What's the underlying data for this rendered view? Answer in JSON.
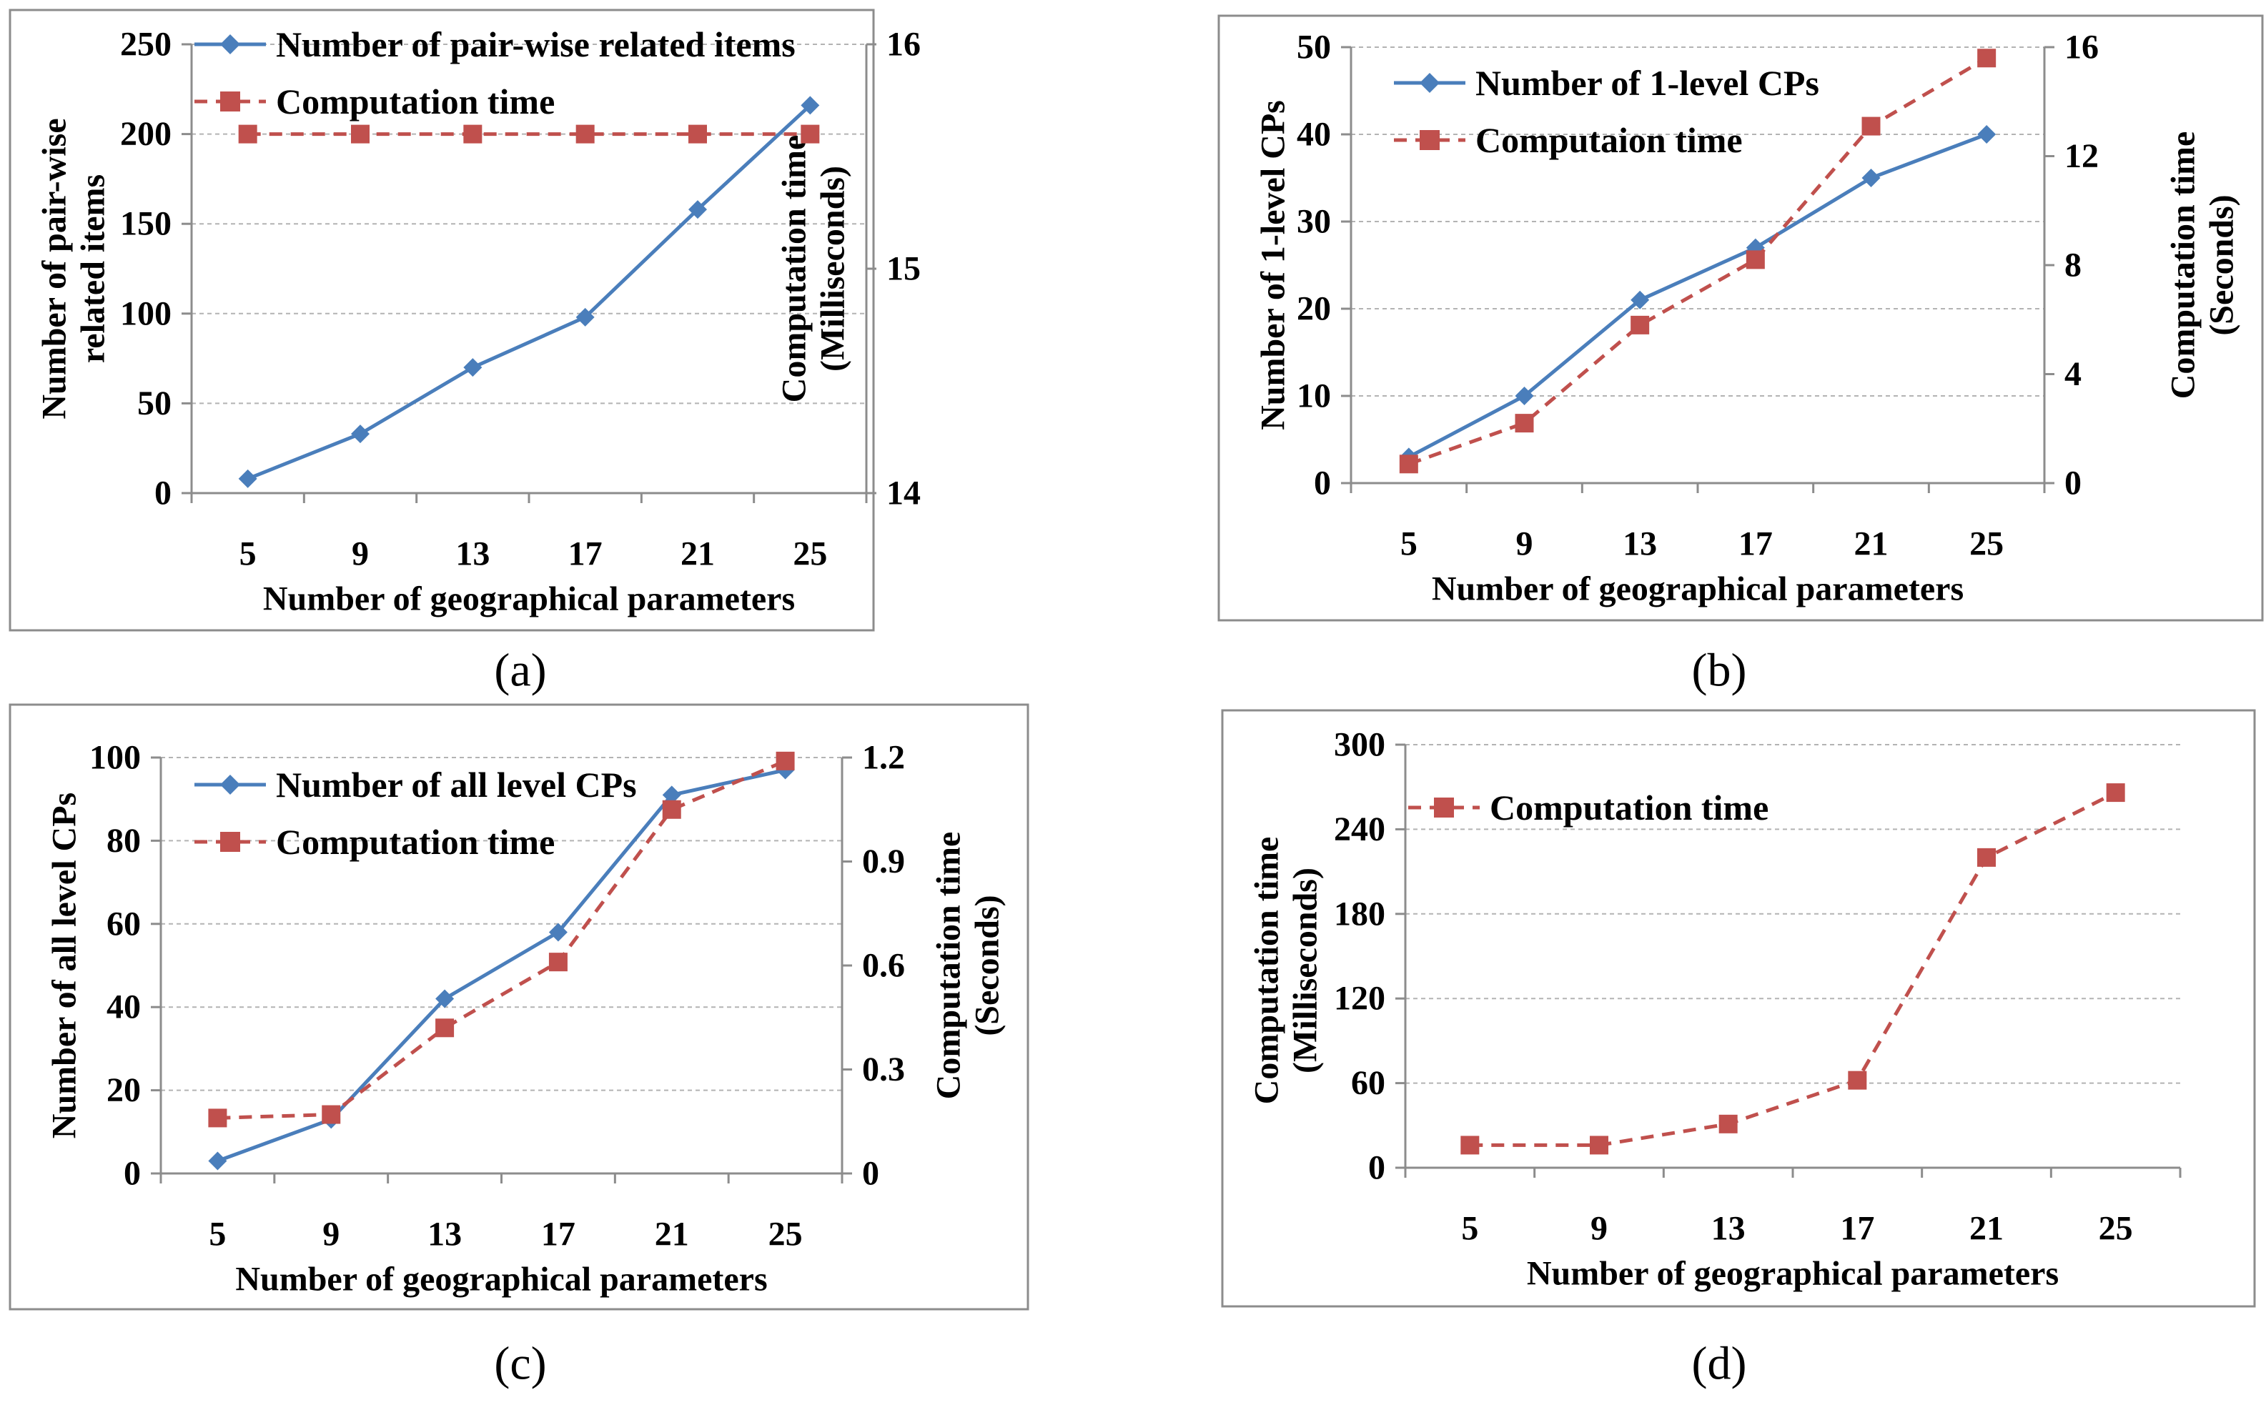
{
  "colors": {
    "blue": "#4a7ebb",
    "red": "#c0504d"
  },
  "chart_data": [
    {
      "type": "line",
      "panel_label": "(a)",
      "xlabel": "Number of geographical parameters",
      "ylabel_lines": [
        "Number of pair-wise",
        "related items"
      ],
      "y2label_lines": [
        "Computation time",
        "(Milliseconds)"
      ],
      "categories": [
        "5",
        "9",
        "13",
        "17",
        "21",
        "25"
      ],
      "ylim": [
        0,
        250
      ],
      "yticks": [
        "0",
        "50",
        "100",
        "150",
        "200",
        "250"
      ],
      "y2lim": [
        14,
        16
      ],
      "y2ticks": [
        "14",
        "15",
        "16"
      ],
      "grid": true,
      "legend_position": "top-left",
      "series": [
        {
          "name": "Number of pair-wise  related items",
          "axis": "left",
          "style": "solid-diamond",
          "color": "#4a7ebb",
          "values": [
            8,
            33,
            70,
            98,
            158,
            216
          ]
        },
        {
          "name": "Computation time",
          "axis": "right",
          "style": "dashed-square",
          "color": "#c0504d",
          "values": [
            15.6,
            15.6,
            15.6,
            15.6,
            15.6,
            15.6
          ]
        }
      ]
    },
    {
      "type": "line",
      "panel_label": "(b)",
      "xlabel": "Number of geographical parameters",
      "ylabel_lines": [
        "Number of 1-level CPs"
      ],
      "y2label_lines": [
        "Computation time",
        "(Seconds)"
      ],
      "categories": [
        "5",
        "9",
        "13",
        "17",
        "21",
        "25"
      ],
      "ylim": [
        0,
        50
      ],
      "yticks": [
        "0",
        "10",
        "20",
        "30",
        "40",
        "50"
      ],
      "y2lim": [
        0,
        16
      ],
      "y2ticks": [
        "0",
        "4",
        "8",
        "12",
        "16"
      ],
      "grid": true,
      "legend_position": "top-left",
      "series": [
        {
          "name": "Number of 1-level CPs",
          "axis": "left",
          "style": "solid-diamond",
          "color": "#4a7ebb",
          "values": [
            3,
            10,
            21,
            27,
            35,
            40
          ]
        },
        {
          "name": "Computaion time",
          "axis": "right",
          "style": "dashed-square",
          "color": "#c0504d",
          "values": [
            0.7,
            2.2,
            5.8,
            8.2,
            13.1,
            15.6
          ]
        }
      ]
    },
    {
      "type": "line",
      "panel_label": "(c)",
      "xlabel": "Number of geographical parameters",
      "ylabel_lines": [
        "Number of  all level CPs"
      ],
      "y2label_lines": [
        "Computation time",
        "(Seconds)"
      ],
      "categories": [
        "5",
        "9",
        "13",
        "17",
        "21",
        "25"
      ],
      "ylim": [
        0,
        100
      ],
      "yticks": [
        "0",
        "20",
        "40",
        "60",
        "80",
        "100"
      ],
      "y2lim": [
        0,
        1.2
      ],
      "y2ticks": [
        "0",
        "0.3",
        "0.6",
        "0.9",
        "1.2"
      ],
      "grid": true,
      "legend_position": "top-left",
      "series": [
        {
          "name": "Number of all level CPs",
          "axis": "left",
          "style": "solid-diamond",
          "color": "#4a7ebb",
          "values": [
            3,
            13,
            42,
            58,
            91,
            97
          ]
        },
        {
          "name": "Computation time",
          "axis": "right",
          "style": "dashed-square",
          "color": "#c0504d",
          "values": [
            0.16,
            0.17,
            0.42,
            0.61,
            1.05,
            1.19
          ]
        }
      ]
    },
    {
      "type": "line",
      "panel_label": "(d)",
      "xlabel": "Number of geographical parameters",
      "ylabel_lines": [
        "Computation time",
        "(Milliseconds)"
      ],
      "y2label_lines": [],
      "categories": [
        "5",
        "9",
        "13",
        "17",
        "21",
        "25"
      ],
      "ylim": [
        0,
        300
      ],
      "yticks": [
        "0",
        "60",
        "120",
        "180",
        "240",
        "300"
      ],
      "y2lim": null,
      "y2ticks": [],
      "grid": true,
      "legend_position": "top-left",
      "series": [
        {
          "name": "Computation time",
          "axis": "left",
          "style": "dashed-square",
          "color": "#c0504d",
          "values": [
            16,
            16,
            31,
            62,
            220,
            266
          ]
        }
      ]
    }
  ]
}
